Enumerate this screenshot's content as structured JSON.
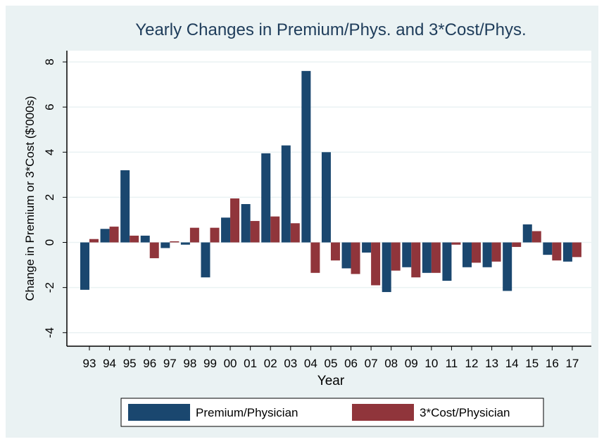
{
  "chart_data": {
    "type": "bar",
    "title": "Yearly Changes in Premium/Phys. and 3*Cost/Phys.",
    "x_label": "Year",
    "y_label": "Change in Premium or 3*Cost ($'000s)",
    "categories": [
      "93",
      "94",
      "95",
      "96",
      "97",
      "98",
      "99",
      "00",
      "01",
      "02",
      "03",
      "04",
      "05",
      "06",
      "07",
      "08",
      "09",
      "10",
      "11",
      "12",
      "13",
      "14",
      "15",
      "16",
      "17"
    ],
    "series": [
      {
        "name": "Premium/Physician",
        "color": "#1a476f",
        "values": [
          -2.1,
          0.6,
          3.2,
          0.3,
          -0.25,
          -0.1,
          -1.55,
          1.1,
          1.7,
          3.95,
          4.3,
          7.6,
          4.0,
          -1.15,
          -0.45,
          -2.2,
          -1.1,
          -1.35,
          -1.7,
          -1.1,
          -1.1,
          -2.15,
          0.8,
          -0.55,
          -0.85
        ]
      },
      {
        "name": "3*Cost/Physician",
        "color": "#90353b",
        "values": [
          0.15,
          0.7,
          0.3,
          -0.7,
          0.05,
          0.65,
          0.65,
          1.95,
          0.95,
          1.15,
          0.85,
          -1.35,
          -0.8,
          -1.4,
          -1.9,
          -1.25,
          -1.55,
          -1.35,
          -0.1,
          -0.9,
          -0.85,
          -0.2,
          0.5,
          -0.8,
          -0.65
        ]
      }
    ],
    "ylim": [
      -4.6,
      8.5
    ],
    "yticks": [
      -4,
      -2,
      0,
      2,
      4,
      6,
      8
    ],
    "grid": true,
    "legend": "bottom"
  }
}
